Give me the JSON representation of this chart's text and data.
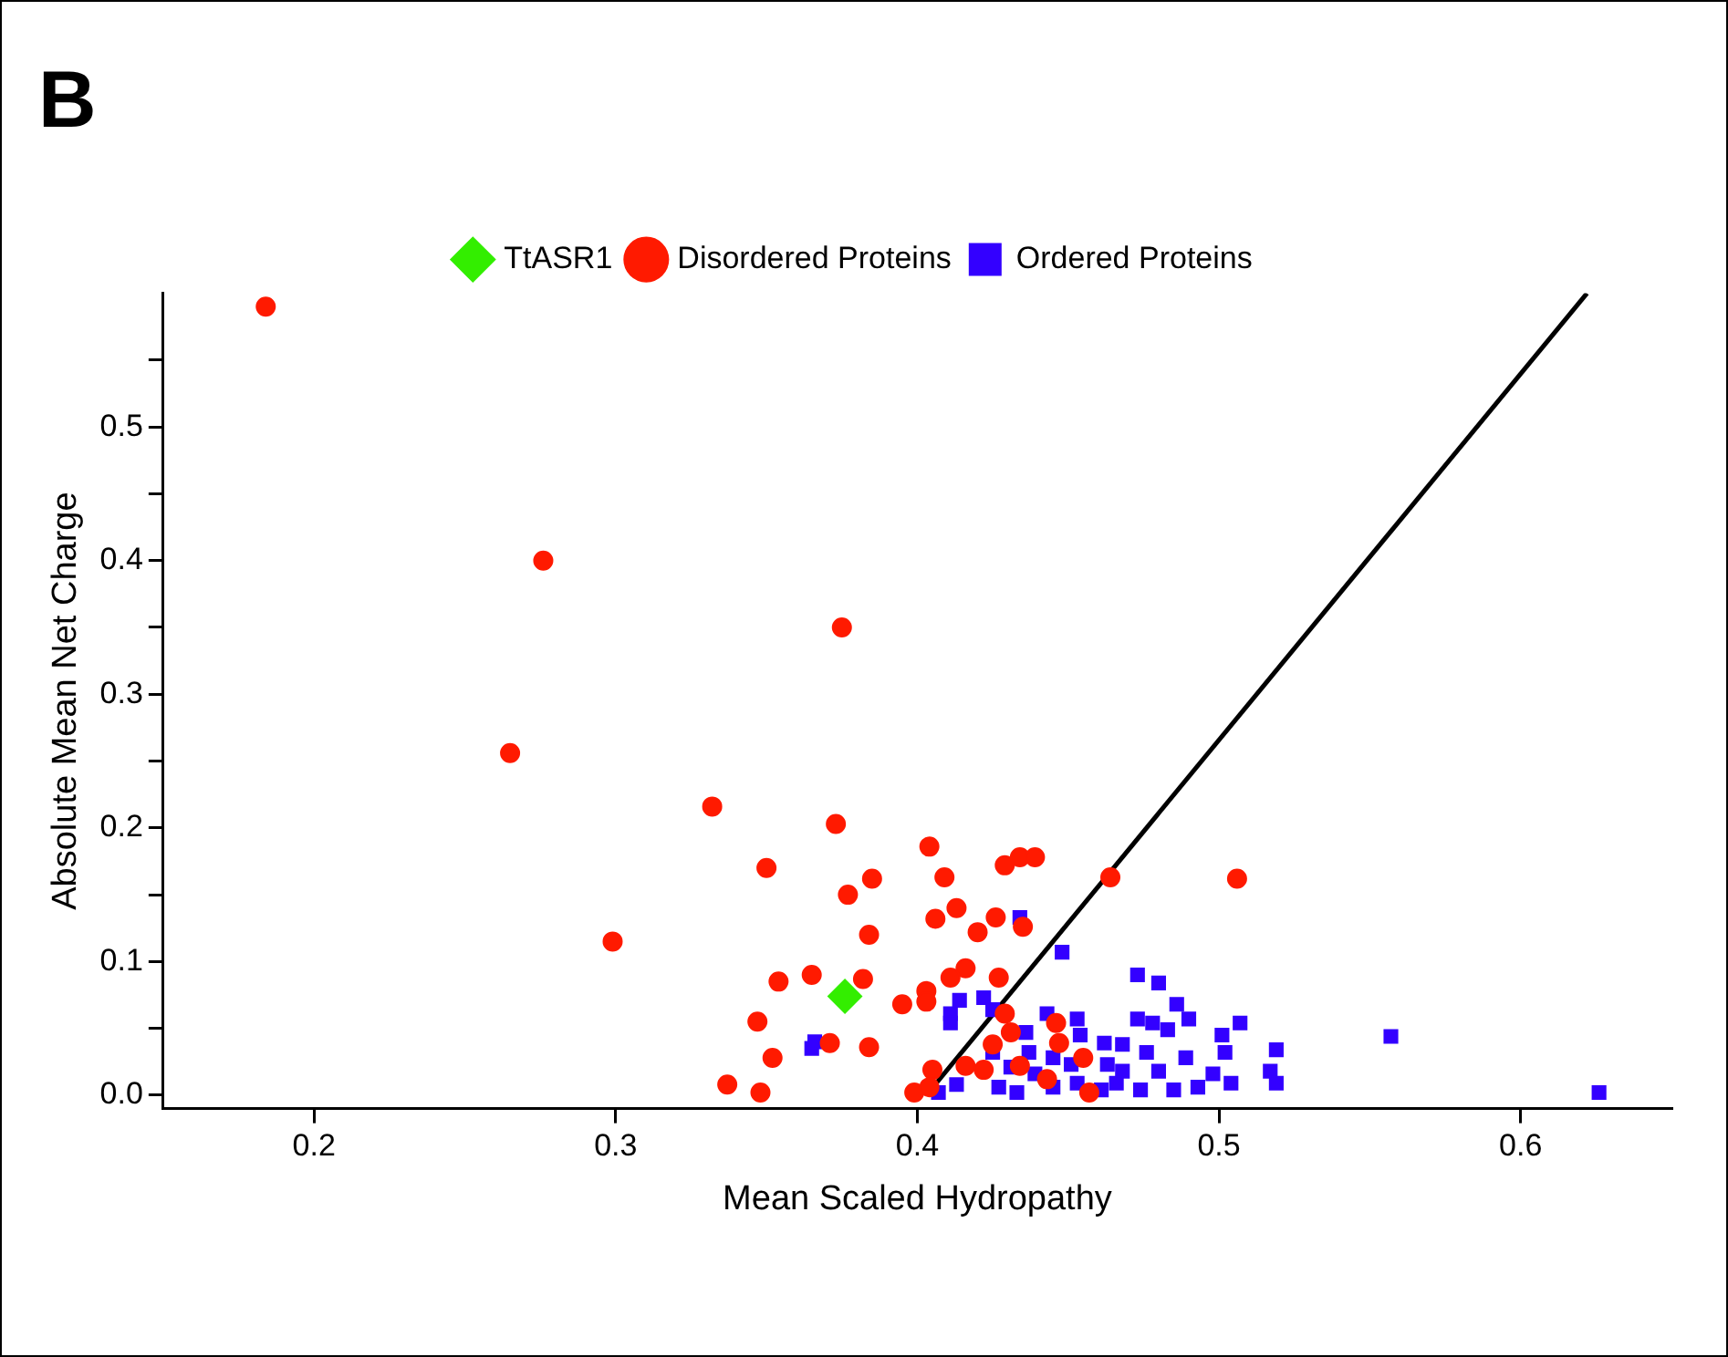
{
  "chart_data": {
    "type": "scatter",
    "title": "B",
    "xlabel": "Mean Scaled Hydropathy",
    "ylabel": "Absolute Mean Net Charge",
    "xlim": [
      0.15,
      0.65
    ],
    "xticks": [
      0.2,
      0.3,
      0.4,
      0.5,
      0.6
    ],
    "ylim": [
      -0.01,
      0.6
    ],
    "yticks": [
      {
        "value": 0,
        "label": "0.0"
      },
      {
        "value": 0.05,
        "label": null
      },
      0.1,
      {
        "value": 0.15,
        "label": null
      },
      0.2,
      {
        "value": 0.25,
        "label": null
      },
      0.3,
      {
        "value": 0.35,
        "label": null
      },
      0.4,
      {
        "value": 0.45,
        "label": null
      },
      0.5,
      {
        "value": 0.55,
        "label": null
      }
    ],
    "grid": false,
    "legend": "top",
    "series": [
      {
        "name": "TtASR1",
        "color": "#33ee00",
        "marker": "diamond",
        "x": [
          0.376
        ],
        "values": [
          0.074
        ]
      },
      {
        "name": "Disordered Proteins",
        "color": "#ff1a00",
        "marker": "circle",
        "x": [
          0.184,
          0.276,
          0.375,
          0.265,
          0.332,
          0.373,
          0.35,
          0.385,
          0.377,
          0.299,
          0.384,
          0.404,
          0.409,
          0.413,
          0.406,
          0.429,
          0.434,
          0.439,
          0.464,
          0.506,
          0.426,
          0.435,
          0.42,
          0.416,
          0.411,
          0.427,
          0.429,
          0.431,
          0.446,
          0.447,
          0.425,
          0.455,
          0.434,
          0.416,
          0.422,
          0.443,
          0.457,
          0.354,
          0.365,
          0.382,
          0.403,
          0.403,
          0.395,
          0.347,
          0.371,
          0.384,
          0.352,
          0.405,
          0.337,
          0.348,
          0.399,
          0.404
        ],
        "values": [
          0.59,
          0.4,
          0.35,
          0.256,
          0.216,
          0.203,
          0.17,
          0.162,
          0.15,
          0.115,
          0.12,
          0.186,
          0.163,
          0.14,
          0.132,
          0.172,
          0.178,
          0.178,
          0.163,
          0.162,
          0.133,
          0.126,
          0.122,
          0.095,
          0.088,
          0.088,
          0.061,
          0.047,
          0.054,
          0.039,
          0.038,
          0.028,
          0.022,
          0.022,
          0.019,
          0.012,
          0.002,
          0.085,
          0.09,
          0.087,
          0.078,
          0.07,
          0.068,
          0.055,
          0.039,
          0.036,
          0.028,
          0.019,
          0.008,
          0.002,
          0.002,
          0.006
        ]
      },
      {
        "name": "Ordered Proteins",
        "color": "#3300ff",
        "marker": "square",
        "x": [
          0.365,
          0.366,
          0.414,
          0.411,
          0.411,
          0.407,
          0.413,
          0.434,
          0.448,
          0.473,
          0.48,
          0.486,
          0.49,
          0.507,
          0.422,
          0.425,
          0.443,
          0.453,
          0.436,
          0.454,
          0.473,
          0.478,
          0.483,
          0.462,
          0.468,
          0.501,
          0.502,
          0.519,
          0.489,
          0.476,
          0.437,
          0.445,
          0.425,
          0.463,
          0.451,
          0.431,
          0.439,
          0.468,
          0.48,
          0.498,
          0.517,
          0.519,
          0.427,
          0.433,
          0.445,
          0.453,
          0.461,
          0.466,
          0.474,
          0.485,
          0.493,
          0.504,
          0.557,
          0.626
        ],
        "values": [
          0.035,
          0.04,
          0.071,
          0.061,
          0.054,
          0.002,
          0.008,
          0.133,
          0.107,
          0.09,
          0.084,
          0.068,
          0.057,
          0.054,
          0.073,
          0.064,
          0.061,
          0.057,
          0.047,
          0.045,
          0.057,
          0.054,
          0.049,
          0.039,
          0.038,
          0.045,
          0.032,
          0.034,
          0.028,
          0.032,
          0.032,
          0.028,
          0.032,
          0.023,
          0.023,
          0.021,
          0.016,
          0.018,
          0.018,
          0.016,
          0.018,
          0.009,
          0.006,
          0.002,
          0.006,
          0.009,
          0.004,
          0.009,
          0.004,
          0.004,
          0.006,
          0.009,
          0.044,
          0.002
        ]
      },
      {
        "type": "line",
        "color": "#000000",
        "line_style": "solid",
        "marker": "none",
        "x": [
          0.403,
          0.622
        ],
        "values": [
          0.0,
          0.6
        ]
      }
    ]
  }
}
